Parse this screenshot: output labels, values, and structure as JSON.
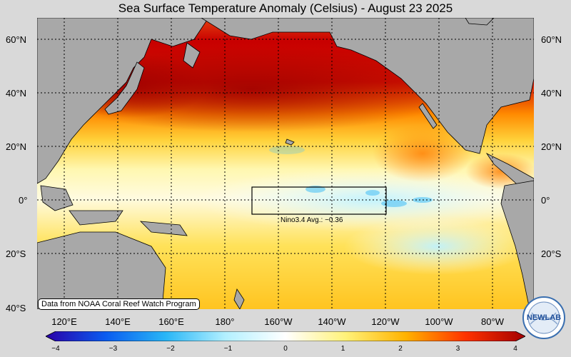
{
  "title": "Sea Surface Temperature Anomaly (Celsius) - August 23 2025",
  "lat_labels": [
    "60°N",
    "40°N",
    "20°N",
    "0°",
    "20°S",
    "40°S"
  ],
  "lon_labels": [
    "120°E",
    "140°E",
    "160°E",
    "180°",
    "160°W",
    "140°W",
    "120°W",
    "100°W",
    "80°W"
  ],
  "nino_box": {
    "label": "Nino3.4 Avg.: −0.36",
    "lat_range": [
      -5,
      5
    ],
    "lon_range": [
      -170,
      -120
    ]
  },
  "credit": "Data from NOAA Coral Reef Watch Program",
  "colorbar": {
    "ticks": [
      "−4",
      "−3",
      "−2",
      "−1",
      "0",
      "1",
      "2",
      "3",
      "4"
    ],
    "colors": [
      "#2a00a8",
      "#0a5cf0",
      "#29b6f6",
      "#b3f0ff",
      "#ffffff",
      "#fff27a",
      "#ffb300",
      "#ff3300",
      "#a30000"
    ]
  },
  "logo_text": "NEWLAB",
  "colors": {
    "land": "#a8a8a8",
    "background": "#d9d9d9",
    "coast": "#000000"
  }
}
